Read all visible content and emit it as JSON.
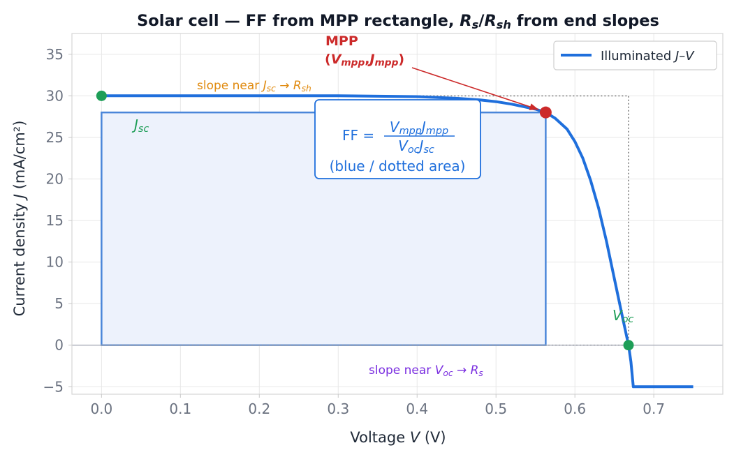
{
  "chart_data": {
    "type": "line",
    "title_parts": [
      {
        "t": "Solar cell — FF from MPP rectangle, "
      },
      {
        "t": "R",
        "i": true
      },
      {
        "t": "s",
        "i": true,
        "sub": true
      },
      {
        "t": "/"
      },
      {
        "t": "R",
        "i": true
      },
      {
        "t": "sh",
        "i": true,
        "sub": true
      },
      {
        "t": " from end slopes"
      }
    ],
    "xlabel_parts": [
      {
        "t": "Voltage  "
      },
      {
        "t": "V",
        "i": true
      },
      {
        "t": "  (V)"
      }
    ],
    "ylabel_parts": [
      {
        "t": "Current density  "
      },
      {
        "t": "J",
        "i": true
      },
      {
        "t": "  (mA/cm²)"
      }
    ],
    "xlim": [
      -0.0375,
      0.7875
    ],
    "ylim": [
      -5.9,
      37.5
    ],
    "xticks": [
      0.0,
      0.1,
      0.2,
      0.3,
      0.4,
      0.5,
      0.6,
      0.7
    ],
    "xtick_labels": [
      "0.0",
      "0.1",
      "0.2",
      "0.3",
      "0.4",
      "0.5",
      "0.6",
      "0.7"
    ],
    "yticks": [
      -5,
      0,
      5,
      10,
      15,
      20,
      25,
      30,
      35
    ],
    "ytick_labels": [
      "−5",
      "0",
      "5",
      "10",
      "15",
      "20",
      "25",
      "30",
      "35"
    ],
    "grid": true,
    "legend_position": "top-right",
    "legend_parts": [
      {
        "t": "Illuminated "
      },
      {
        "t": "J",
        "i": true
      },
      {
        "t": "–"
      },
      {
        "t": "V",
        "i": true
      }
    ],
    "series": [
      {
        "color": "#1f6fdc",
        "x": [
          0.0,
          0.05,
          0.1,
          0.15,
          0.2,
          0.25,
          0.3,
          0.35,
          0.4,
          0.45,
          0.48,
          0.5,
          0.52,
          0.54,
          0.55,
          0.563,
          0.575,
          0.59,
          0.6,
          0.61,
          0.62,
          0.63,
          0.64,
          0.65,
          0.66,
          0.668,
          0.671,
          0.674,
          0.68,
          0.7,
          0.72,
          0.75
        ],
        "y": [
          30.0,
          30.0,
          30.0,
          30.0,
          30.0,
          30.0,
          30.0,
          29.95,
          29.9,
          29.7,
          29.5,
          29.3,
          29.0,
          28.6,
          28.4,
          28.0,
          27.3,
          26.0,
          24.5,
          22.5,
          19.8,
          16.5,
          12.5,
          8.0,
          3.5,
          0.0,
          -2.0,
          -5.0,
          -5.0,
          -5.0,
          -5.0,
          -5.0
        ]
      }
    ],
    "mpp": {
      "v": 0.563,
      "j": 28.0
    },
    "jsc_point": {
      "v": 0.0,
      "j": 30.0
    },
    "voc_point": {
      "v": 0.668,
      "j": 0.0
    },
    "colors": {
      "curve": "#1f6fdc",
      "mpp": "#cc2a2a",
      "markers": "#1e9e57",
      "rect_stroke": "#4a86d9",
      "rect_fill": "#edf2fc",
      "dotted": "#8a8a8a",
      "slope_jsc": "#e08a0e",
      "slope_voc": "#7a2ee0",
      "ff_text": "#1f6fdc"
    },
    "annotations": {
      "mpp_title": "MPP",
      "mpp_sub_parts": [
        {
          "t": "("
        },
        {
          "t": "V",
          "i": true
        },
        {
          "t": "mpp",
          "i": true,
          "sub": true
        },
        {
          "t": ","
        },
        {
          "t": "J",
          "i": true
        },
        {
          "t": "mpp",
          "i": true,
          "sub": true
        },
        {
          "t": ")"
        }
      ],
      "slope_jsc_parts": [
        {
          "t": "slope near "
        },
        {
          "t": "J",
          "i": true
        },
        {
          "t": "sc",
          "i": true,
          "sub": true
        },
        {
          "t": " → "
        },
        {
          "t": "R",
          "i": true
        },
        {
          "t": "sh",
          "i": true,
          "sub": true
        }
      ],
      "slope_voc_parts": [
        {
          "t": "slope near "
        },
        {
          "t": "V",
          "i": true
        },
        {
          "t": "oc",
          "i": true,
          "sub": true
        },
        {
          "t": " → "
        },
        {
          "t": "R",
          "i": true
        },
        {
          "t": "s",
          "i": true,
          "sub": true
        }
      ],
      "jsc_parts": [
        {
          "t": "J",
          "i": true
        },
        {
          "t": "sc",
          "i": true,
          "sub": true
        }
      ],
      "voc_parts": [
        {
          "t": "V",
          "i": true
        },
        {
          "t": "oc",
          "i": true,
          "sub": true
        }
      ],
      "ff_lhs": "FF = ",
      "ff_num_parts": [
        {
          "t": "V",
          "i": true
        },
        {
          "t": "mpp",
          "i": true,
          "sub": true
        },
        {
          "t": "J",
          "i": true
        },
        {
          "t": "mpp",
          "i": true,
          "sub": true
        }
      ],
      "ff_den_parts": [
        {
          "t": "V",
          "i": true
        },
        {
          "t": "oc",
          "i": true,
          "sub": true
        },
        {
          "t": "J",
          "i": true
        },
        {
          "t": "sc",
          "i": true,
          "sub": true
        }
      ],
      "ff_note": "(blue / dotted area)"
    }
  }
}
